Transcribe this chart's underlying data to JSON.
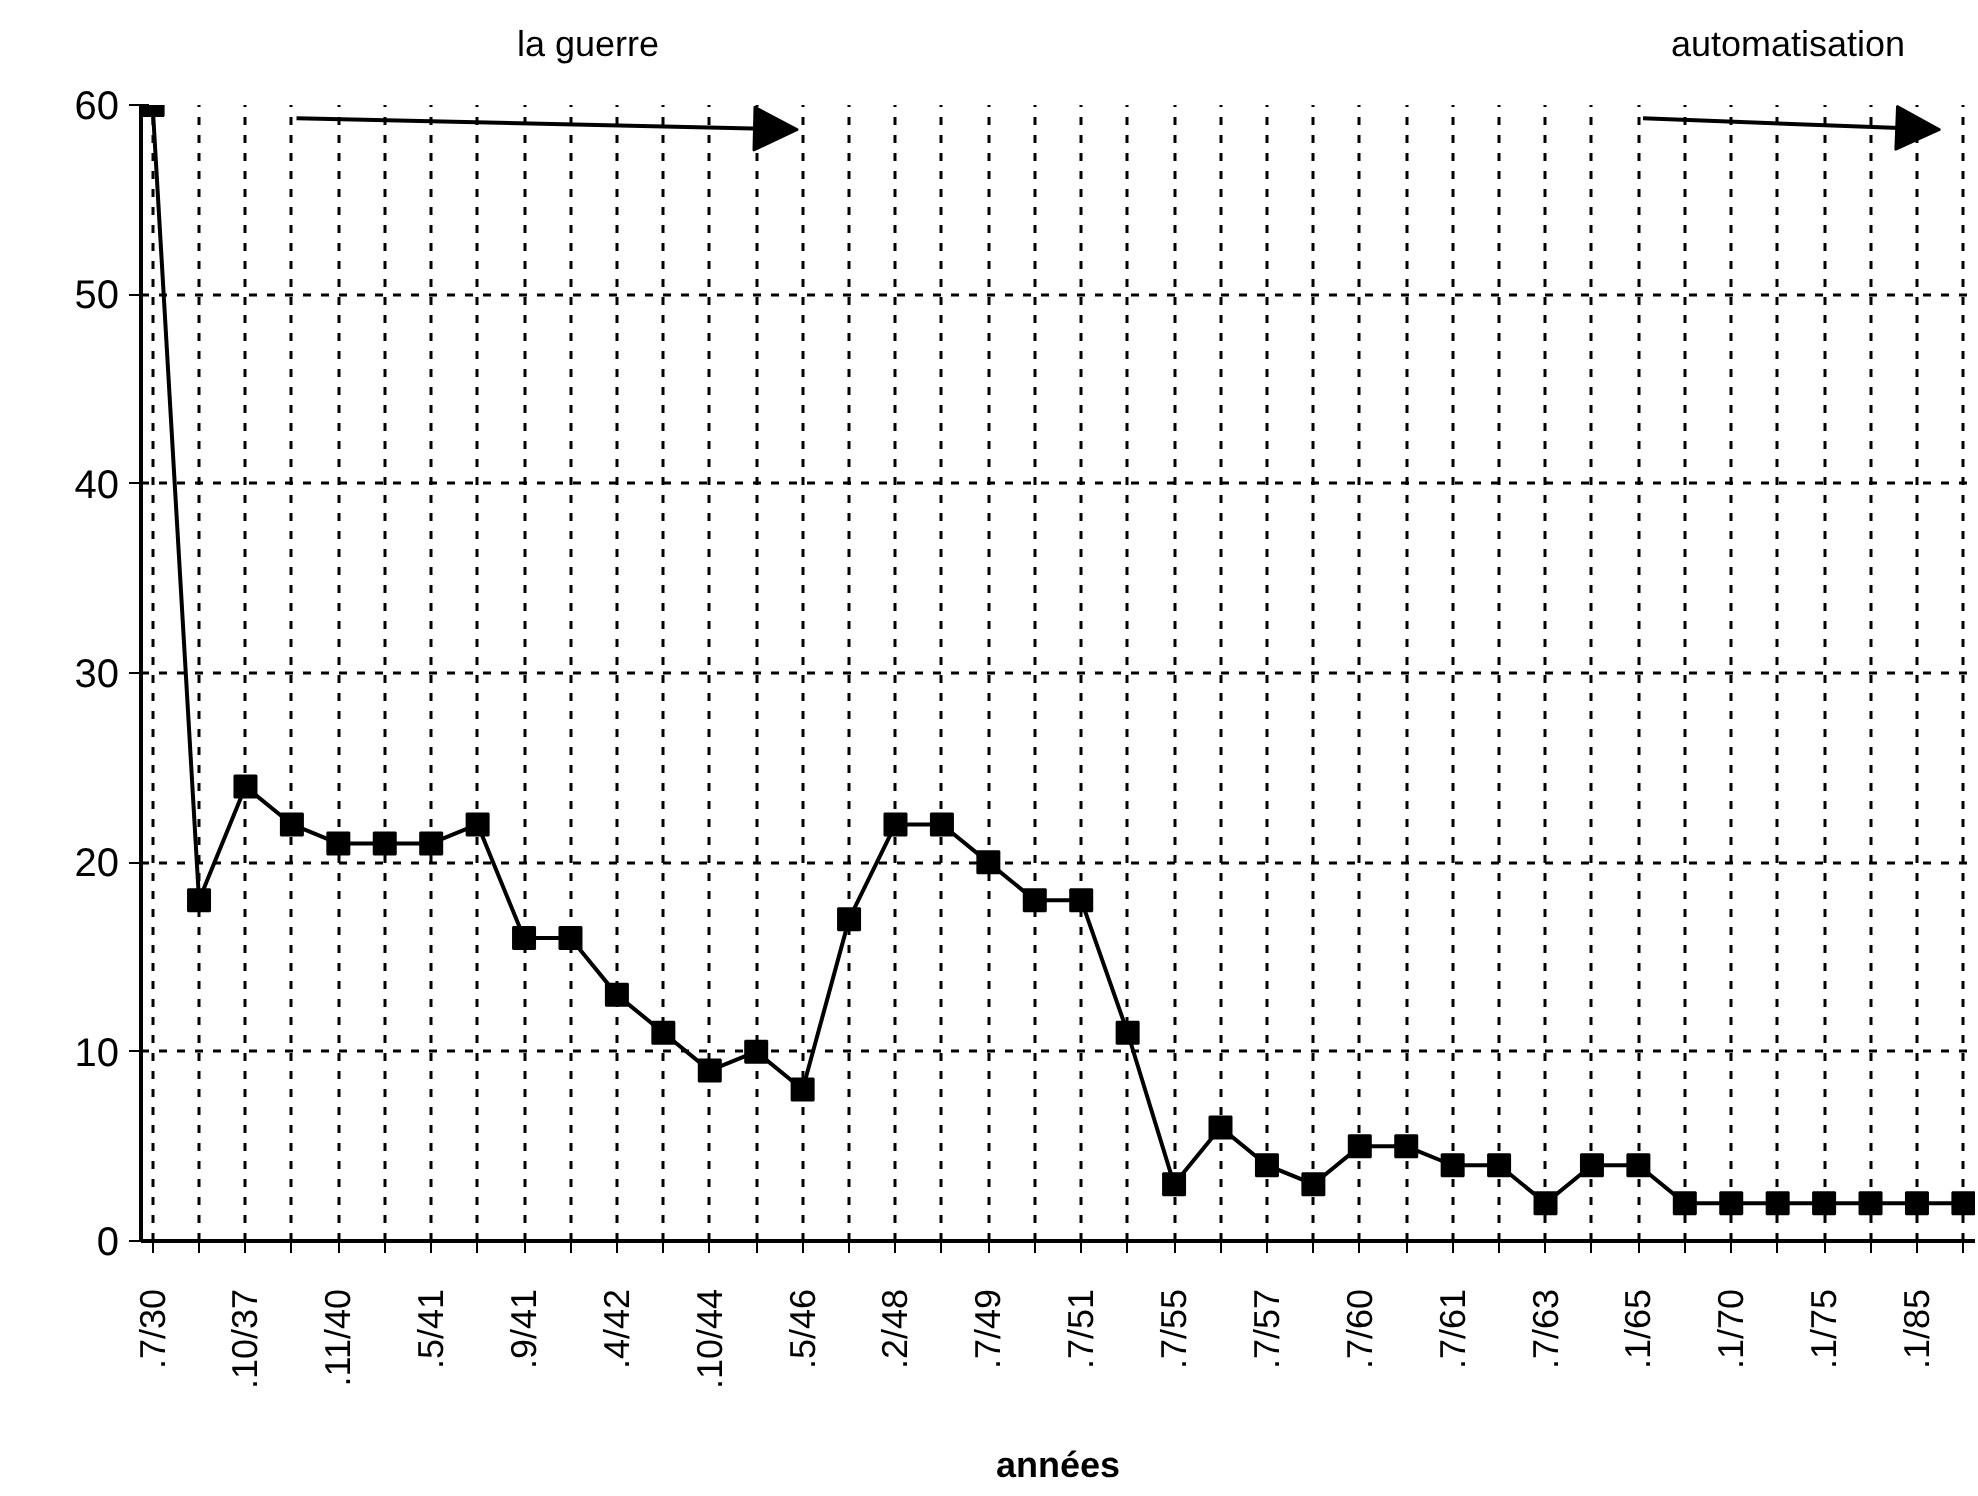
{
  "chart_data": {
    "type": "line",
    "xlabel": "années",
    "categories": [
      ".7/30",
      null,
      ".10/37",
      null,
      ".11/40",
      null,
      ".5/41",
      null,
      ".9/41",
      null,
      ".4/42",
      null,
      ".10/44",
      null,
      ".5/46",
      null,
      ".2/48",
      null,
      ".7/49",
      null,
      ".7/51",
      null,
      ".7/55",
      null,
      ".7/57",
      null,
      ".7/60",
      null,
      ".7/61",
      null,
      ".7/63",
      null,
      ".1/65",
      null,
      ".1/70",
      null,
      ".1/75",
      null,
      ".1/85",
      null
    ],
    "series": [
      {
        "color": "#000000",
        "values": [
          60,
          18,
          24,
          22,
          21,
          21,
          21,
          22,
          16,
          16,
          13,
          11,
          9,
          10,
          8,
          17,
          22,
          22,
          20,
          18,
          18,
          11,
          3,
          6,
          4,
          3,
          5,
          5,
          4,
          4,
          2,
          4,
          4,
          2,
          2,
          2,
          2,
          2,
          2,
          2
        ]
      }
    ],
    "ylim": [
      0,
      60
    ],
    "yticks": [
      0,
      10,
      20,
      30,
      40,
      50,
      60
    ],
    "grid": true,
    "marker": "square",
    "line_style": "solid",
    "annotations": [
      "la guerre",
      "automatisation"
    ]
  }
}
